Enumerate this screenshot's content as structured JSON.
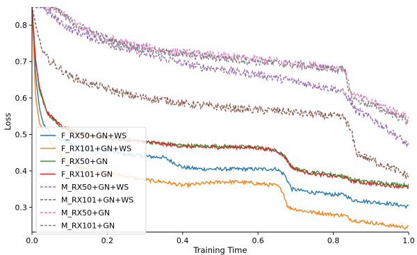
{
  "chart_data": {
    "type": "line",
    "title": "",
    "xlabel": "Training Time",
    "ylabel": "Loss",
    "xlim": [
      0.0,
      1.0
    ],
    "ylim": [
      0.232,
      0.85
    ],
    "xticks": [
      "0.0",
      "0.2",
      "0.4",
      "0.6",
      "0.8",
      "1.0"
    ],
    "yticks": [
      "0.3",
      "0.4",
      "0.5",
      "0.6",
      "0.7",
      "0.8"
    ],
    "grid": false,
    "legend_position": "lower-left",
    "series": [
      {
        "name": "F_RX50+GN+WS",
        "color": "#1f77b4",
        "dash": "solid",
        "points": [
          [
            0.0,
            0.85
          ],
          [
            0.01,
            0.66
          ],
          [
            0.02,
            0.57
          ],
          [
            0.03,
            0.53
          ],
          [
            0.05,
            0.5
          ],
          [
            0.1,
            0.475
          ],
          [
            0.15,
            0.46
          ],
          [
            0.2,
            0.455
          ],
          [
            0.25,
            0.445
          ],
          [
            0.3,
            0.44
          ],
          [
            0.35,
            0.437
          ],
          [
            0.4,
            0.41
          ],
          [
            0.45,
            0.405
          ],
          [
            0.5,
            0.405
          ],
          [
            0.55,
            0.405
          ],
          [
            0.6,
            0.405
          ],
          [
            0.65,
            0.405
          ],
          [
            0.67,
            0.39
          ],
          [
            0.69,
            0.35
          ],
          [
            0.72,
            0.345
          ],
          [
            0.75,
            0.34
          ],
          [
            0.8,
            0.335
          ],
          [
            0.83,
            0.335
          ],
          [
            0.85,
            0.32
          ],
          [
            0.9,
            0.315
          ],
          [
            0.95,
            0.31
          ],
          [
            1.0,
            0.302
          ]
        ]
      },
      {
        "name": "F_RX101+GN+WS",
        "color": "#ff7f0e",
        "dash": "solid",
        "points": [
          [
            0.0,
            0.85
          ],
          [
            0.01,
            0.6
          ],
          [
            0.02,
            0.53
          ],
          [
            0.04,
            0.49
          ],
          [
            0.08,
            0.44
          ],
          [
            0.12,
            0.41
          ],
          [
            0.16,
            0.4
          ],
          [
            0.2,
            0.395
          ],
          [
            0.25,
            0.385
          ],
          [
            0.3,
            0.375
          ],
          [
            0.35,
            0.37
          ],
          [
            0.4,
            0.36
          ],
          [
            0.45,
            0.365
          ],
          [
            0.5,
            0.37
          ],
          [
            0.55,
            0.37
          ],
          [
            0.6,
            0.365
          ],
          [
            0.65,
            0.36
          ],
          [
            0.665,
            0.345
          ],
          [
            0.68,
            0.3
          ],
          [
            0.72,
            0.29
          ],
          [
            0.76,
            0.285
          ],
          [
            0.8,
            0.28
          ],
          [
            0.83,
            0.278
          ],
          [
            0.85,
            0.265
          ],
          [
            0.9,
            0.258
          ],
          [
            0.95,
            0.25
          ],
          [
            1.0,
            0.245
          ]
        ]
      },
      {
        "name": "F_RX50+GN",
        "color": "#2ca02c",
        "dash": "solid",
        "points": [
          [
            0.0,
            0.85
          ],
          [
            0.01,
            0.7
          ],
          [
            0.02,
            0.62
          ],
          [
            0.04,
            0.56
          ],
          [
            0.08,
            0.52
          ],
          [
            0.12,
            0.505
          ],
          [
            0.2,
            0.49
          ],
          [
            0.25,
            0.485
          ],
          [
            0.3,
            0.48
          ],
          [
            0.35,
            0.475
          ],
          [
            0.4,
            0.47
          ],
          [
            0.45,
            0.468
          ],
          [
            0.5,
            0.468
          ],
          [
            0.55,
            0.466
          ],
          [
            0.6,
            0.465
          ],
          [
            0.65,
            0.455
          ],
          [
            0.67,
            0.44
          ],
          [
            0.69,
            0.41
          ],
          [
            0.72,
            0.4
          ],
          [
            0.76,
            0.395
          ],
          [
            0.8,
            0.39
          ],
          [
            0.83,
            0.385
          ],
          [
            0.85,
            0.375
          ],
          [
            0.9,
            0.37
          ],
          [
            0.95,
            0.365
          ],
          [
            1.0,
            0.36
          ]
        ]
      },
      {
        "name": "F_RX101+GN",
        "color": "#d62728",
        "dash": "solid",
        "points": [
          [
            0.0,
            0.85
          ],
          [
            0.01,
            0.7
          ],
          [
            0.02,
            0.63
          ],
          [
            0.04,
            0.56
          ],
          [
            0.08,
            0.52
          ],
          [
            0.12,
            0.505
          ],
          [
            0.2,
            0.49
          ],
          [
            0.25,
            0.485
          ],
          [
            0.3,
            0.48
          ],
          [
            0.35,
            0.473
          ],
          [
            0.4,
            0.468
          ],
          [
            0.45,
            0.465
          ],
          [
            0.5,
            0.465
          ],
          [
            0.55,
            0.465
          ],
          [
            0.6,
            0.463
          ],
          [
            0.65,
            0.455
          ],
          [
            0.67,
            0.44
          ],
          [
            0.69,
            0.41
          ],
          [
            0.72,
            0.398
          ],
          [
            0.76,
            0.39
          ],
          [
            0.8,
            0.385
          ],
          [
            0.83,
            0.383
          ],
          [
            0.85,
            0.372
          ],
          [
            0.9,
            0.365
          ],
          [
            0.95,
            0.36
          ],
          [
            1.0,
            0.355
          ]
        ]
      },
      {
        "name": "M_RX50+GN+WS",
        "color": "#9467bd",
        "dash": "dashed",
        "points": [
          [
            0.0,
            0.85
          ],
          [
            0.03,
            0.85
          ],
          [
            0.06,
            0.82
          ],
          [
            0.1,
            0.79
          ],
          [
            0.15,
            0.77
          ],
          [
            0.2,
            0.75
          ],
          [
            0.25,
            0.735
          ],
          [
            0.3,
            0.72
          ],
          [
            0.35,
            0.71
          ],
          [
            0.4,
            0.695
          ],
          [
            0.45,
            0.685
          ],
          [
            0.5,
            0.68
          ],
          [
            0.55,
            0.67
          ],
          [
            0.6,
            0.665
          ],
          [
            0.65,
            0.655
          ],
          [
            0.7,
            0.645
          ],
          [
            0.75,
            0.635
          ],
          [
            0.8,
            0.625
          ],
          [
            0.82,
            0.62
          ],
          [
            0.84,
            0.6
          ],
          [
            0.86,
            0.565
          ],
          [
            0.9,
            0.545
          ],
          [
            0.95,
            0.51
          ],
          [
            1.0,
            0.47
          ]
        ]
      },
      {
        "name": "M_RX101+GN+WS",
        "color": "#8c564b",
        "dash": "dashed",
        "points": [
          [
            0.0,
            0.85
          ],
          [
            0.01,
            0.8
          ],
          [
            0.03,
            0.72
          ],
          [
            0.05,
            0.7
          ],
          [
            0.1,
            0.66
          ],
          [
            0.15,
            0.64
          ],
          [
            0.2,
            0.625
          ],
          [
            0.25,
            0.61
          ],
          [
            0.3,
            0.6
          ],
          [
            0.35,
            0.595
          ],
          [
            0.4,
            0.585
          ],
          [
            0.45,
            0.58
          ],
          [
            0.5,
            0.575
          ],
          [
            0.55,
            0.57
          ],
          [
            0.6,
            0.567
          ],
          [
            0.65,
            0.565
          ],
          [
            0.7,
            0.56
          ],
          [
            0.75,
            0.555
          ],
          [
            0.8,
            0.55
          ],
          [
            0.83,
            0.545
          ],
          [
            0.85,
            0.5
          ],
          [
            0.86,
            0.45
          ],
          [
            0.9,
            0.43
          ],
          [
            0.95,
            0.41
          ],
          [
            1.0,
            0.385
          ]
        ]
      },
      {
        "name": "M_RX50+GN",
        "color": "#e377c2",
        "dash": "dashed",
        "points": [
          [
            0.0,
            0.85
          ],
          [
            0.05,
            0.85
          ],
          [
            0.08,
            0.83
          ],
          [
            0.12,
            0.8
          ],
          [
            0.16,
            0.78
          ],
          [
            0.2,
            0.765
          ],
          [
            0.25,
            0.75
          ],
          [
            0.3,
            0.74
          ],
          [
            0.35,
            0.73
          ],
          [
            0.4,
            0.725
          ],
          [
            0.45,
            0.72
          ],
          [
            0.5,
            0.715
          ],
          [
            0.55,
            0.71
          ],
          [
            0.6,
            0.705
          ],
          [
            0.65,
            0.7
          ],
          [
            0.7,
            0.695
          ],
          [
            0.75,
            0.69
          ],
          [
            0.8,
            0.685
          ],
          [
            0.83,
            0.68
          ],
          [
            0.84,
            0.64
          ],
          [
            0.85,
            0.61
          ],
          [
            0.9,
            0.59
          ],
          [
            0.95,
            0.57
          ],
          [
            1.0,
            0.545
          ]
        ]
      },
      {
        "name": "M_RX101+GN",
        "color": "#7f7f7f",
        "dash": "dashed",
        "points": [
          [
            0.0,
            0.85
          ],
          [
            0.05,
            0.85
          ],
          [
            0.08,
            0.83
          ],
          [
            0.12,
            0.8
          ],
          [
            0.16,
            0.78
          ],
          [
            0.2,
            0.76
          ],
          [
            0.25,
            0.745
          ],
          [
            0.3,
            0.735
          ],
          [
            0.35,
            0.725
          ],
          [
            0.4,
            0.72
          ],
          [
            0.45,
            0.715
          ],
          [
            0.5,
            0.71
          ],
          [
            0.55,
            0.705
          ],
          [
            0.6,
            0.7
          ],
          [
            0.65,
            0.695
          ],
          [
            0.7,
            0.69
          ],
          [
            0.75,
            0.685
          ],
          [
            0.8,
            0.68
          ],
          [
            0.83,
            0.675
          ],
          [
            0.84,
            0.63
          ],
          [
            0.85,
            0.6
          ],
          [
            0.9,
            0.58
          ],
          [
            0.95,
            0.56
          ],
          [
            1.0,
            0.535
          ]
        ]
      }
    ]
  }
}
